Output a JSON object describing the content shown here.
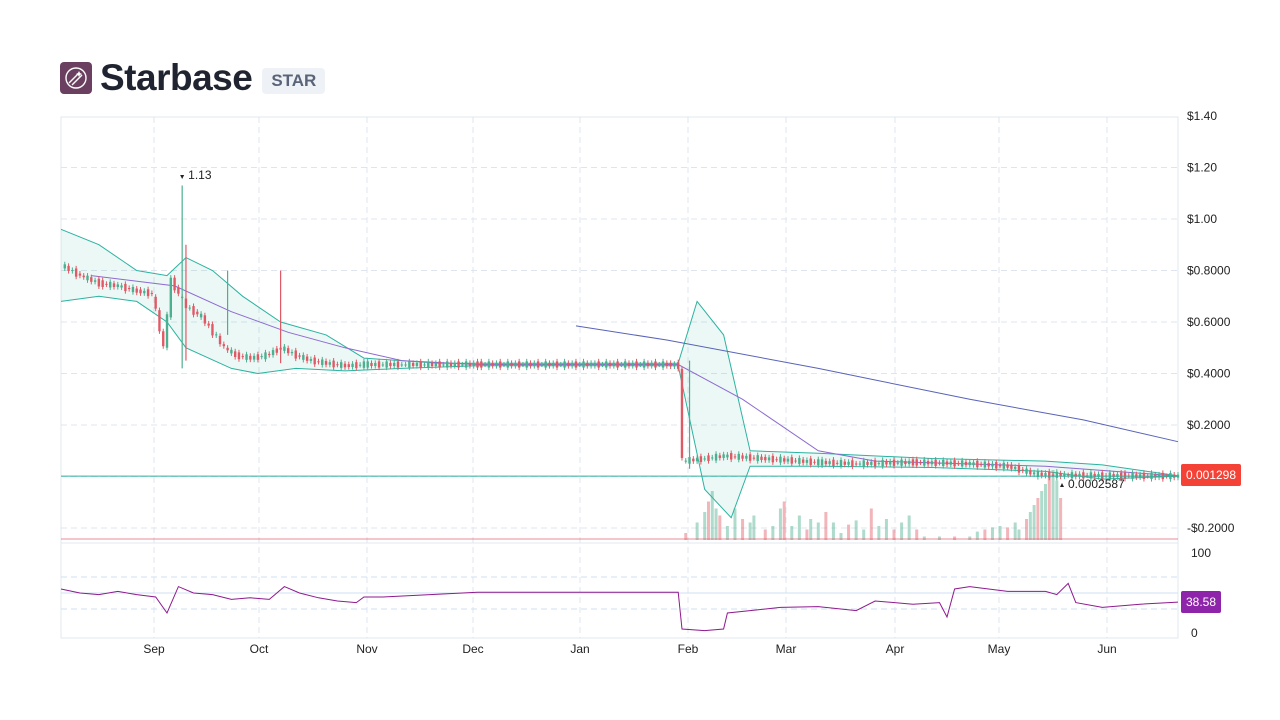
{
  "header": {
    "name": "Starbase",
    "ticker": "STAR",
    "logo_icon": "starbase-logo-icon"
  },
  "colors": {
    "up": "#4caf8f",
    "down": "#e05a66",
    "band": "#2bb3a0",
    "band_fill": "rgba(43,179,160,0.09)",
    "ma_long": "#5863b8",
    "ma_short": "#8c6ad0",
    "rsi": "#8e1a8e",
    "price_pill": "#f44336",
    "rsi_pill": "#8e24aa",
    "grid": "#dfe5ee"
  },
  "chart_data": {
    "type": "candlestick",
    "x_labels": [
      "Sep",
      "Oct",
      "Nov",
      "Dec",
      "Jan",
      "Feb",
      "Mar",
      "Apr",
      "May",
      "Jun"
    ],
    "y_ticks": [
      "$1.40",
      "$1.20",
      "$1.00",
      "$0.8000",
      "$0.6000",
      "$0.4000",
      "$0.2000",
      "-$0.2000"
    ],
    "ylim": [
      -0.2,
      1.4
    ],
    "last_price_label": "0.001298",
    "high_annotation": "1.13",
    "low_annotation": "0.0002587",
    "rsi": {
      "ticks": [
        "100",
        "0"
      ],
      "ylim": [
        0,
        100
      ],
      "last_label": "38.58",
      "bands": [
        30,
        50,
        70
      ]
    },
    "series_close": [
      {
        "x": 0,
        "y": 0.82
      },
      {
        "x": 5,
        "y": 0.78
      },
      {
        "x": 10,
        "y": 0.75
      },
      {
        "x": 15,
        "y": 0.74
      },
      {
        "x": 20,
        "y": 0.72
      },
      {
        "x": 24,
        "y": 0.71
      },
      {
        "x": 27,
        "y": 0.5
      },
      {
        "x": 29,
        "y": 0.76
      },
      {
        "x": 33,
        "y": 0.66
      },
      {
        "x": 37,
        "y": 0.62
      },
      {
        "x": 40,
        "y": 0.56
      },
      {
        "x": 43,
        "y": 0.5
      },
      {
        "x": 46,
        "y": 0.47
      },
      {
        "x": 50,
        "y": 0.46
      },
      {
        "x": 54,
        "y": 0.47
      },
      {
        "x": 58,
        "y": 0.5
      },
      {
        "x": 62,
        "y": 0.47
      },
      {
        "x": 66,
        "y": 0.45
      },
      {
        "x": 70,
        "y": 0.44
      },
      {
        "x": 75,
        "y": 0.43
      },
      {
        "x": 80,
        "y": 0.435
      },
      {
        "x": 90,
        "y": 0.435
      },
      {
        "x": 110,
        "y": 0.435
      },
      {
        "x": 140,
        "y": 0.435
      },
      {
        "x": 160,
        "y": 0.435
      },
      {
        "x": 163,
        "y": 0.43
      },
      {
        "x": 164,
        "y": 0.06
      },
      {
        "x": 170,
        "y": 0.07
      },
      {
        "x": 175,
        "y": 0.08
      },
      {
        "x": 185,
        "y": 0.07
      },
      {
        "x": 200,
        "y": 0.055
      },
      {
        "x": 210,
        "y": 0.05
      },
      {
        "x": 225,
        "y": 0.055
      },
      {
        "x": 240,
        "y": 0.05
      },
      {
        "x": 250,
        "y": 0.04
      },
      {
        "x": 257,
        "y": 0.01
      },
      {
        "x": 265,
        "y": 0.005
      },
      {
        "x": 280,
        "y": 0.003
      },
      {
        "x": 295,
        "y": 0.001298
      }
    ],
    "spikes": [
      {
        "x": 32,
        "high": 1.13,
        "low": 0.42
      },
      {
        "x": 33,
        "high": 0.9,
        "low": 0.45
      },
      {
        "x": 44,
        "high": 0.8,
        "low": 0.55
      },
      {
        "x": 58,
        "high": 0.8,
        "low": 0.44
      },
      {
        "x": 166,
        "high": 0.45,
        "low": 0.03
      }
    ],
    "ma_long": [
      {
        "x": 136,
        "y": 0.585
      },
      {
        "x": 160,
        "y": 0.53
      },
      {
        "x": 200,
        "y": 0.42
      },
      {
        "x": 240,
        "y": 0.3
      },
      {
        "x": 270,
        "y": 0.22
      },
      {
        "x": 295,
        "y": 0.135
      }
    ],
    "ma_short": [
      {
        "x": 8,
        "y": 0.78
      },
      {
        "x": 30,
        "y": 0.74
      },
      {
        "x": 45,
        "y": 0.64
      },
      {
        "x": 60,
        "y": 0.56
      },
      {
        "x": 75,
        "y": 0.5
      },
      {
        "x": 90,
        "y": 0.45
      },
      {
        "x": 110,
        "y": 0.435
      },
      {
        "x": 163,
        "y": 0.435
      },
      {
        "x": 180,
        "y": 0.3
      },
      {
        "x": 200,
        "y": 0.1
      },
      {
        "x": 215,
        "y": 0.06
      },
      {
        "x": 260,
        "y": 0.04
      },
      {
        "x": 295,
        "y": 0.002
      }
    ],
    "band_upper": [
      {
        "x": 0,
        "y": 0.96
      },
      {
        "x": 10,
        "y": 0.9
      },
      {
        "x": 20,
        "y": 0.8
      },
      {
        "x": 28,
        "y": 0.78
      },
      {
        "x": 33,
        "y": 0.85
      },
      {
        "x": 40,
        "y": 0.8
      },
      {
        "x": 48,
        "y": 0.7
      },
      {
        "x": 58,
        "y": 0.6
      },
      {
        "x": 70,
        "y": 0.55
      },
      {
        "x": 80,
        "y": 0.46
      },
      {
        "x": 100,
        "y": 0.44
      },
      {
        "x": 163,
        "y": 0.44
      },
      {
        "x": 168,
        "y": 0.68
      },
      {
        "x": 175,
        "y": 0.55
      },
      {
        "x": 182,
        "y": 0.1
      },
      {
        "x": 200,
        "y": 0.09
      },
      {
        "x": 230,
        "y": 0.07
      },
      {
        "x": 260,
        "y": 0.06
      },
      {
        "x": 275,
        "y": 0.045
      },
      {
        "x": 295,
        "y": 0.003
      }
    ],
    "band_lower": [
      {
        "x": 0,
        "y": 0.68
      },
      {
        "x": 10,
        "y": 0.7
      },
      {
        "x": 20,
        "y": 0.68
      },
      {
        "x": 28,
        "y": 0.6
      },
      {
        "x": 33,
        "y": 0.5
      },
      {
        "x": 45,
        "y": 0.42
      },
      {
        "x": 52,
        "y": 0.4
      },
      {
        "x": 62,
        "y": 0.42
      },
      {
        "x": 75,
        "y": 0.41
      },
      {
        "x": 90,
        "y": 0.42
      },
      {
        "x": 110,
        "y": 0.43
      },
      {
        "x": 163,
        "y": 0.43
      },
      {
        "x": 170,
        "y": -0.05
      },
      {
        "x": 177,
        "y": -0.16
      },
      {
        "x": 182,
        "y": 0.04
      },
      {
        "x": 200,
        "y": 0.04
      },
      {
        "x": 230,
        "y": 0.035
      },
      {
        "x": 260,
        "y": 0.02
      },
      {
        "x": 275,
        "y": -0.01
      },
      {
        "x": 295,
        "y": 0.001
      }
    ],
    "volume": [
      {
        "x": 165,
        "v": 0.1
      },
      {
        "x": 168,
        "v": 0.25
      },
      {
        "x": 170,
        "v": 0.4
      },
      {
        "x": 171,
        "v": 0.55
      },
      {
        "x": 172,
        "v": 0.7
      },
      {
        "x": 173,
        "v": 0.45
      },
      {
        "x": 174,
        "v": 0.35
      },
      {
        "x": 176,
        "v": 0.2
      },
      {
        "x": 178,
        "v": 0.45
      },
      {
        "x": 180,
        "v": 0.3
      },
      {
        "x": 182,
        "v": 0.25
      },
      {
        "x": 183,
        "v": 0.35
      },
      {
        "x": 186,
        "v": 0.15
      },
      {
        "x": 188,
        "v": 0.2
      },
      {
        "x": 190,
        "v": 0.45
      },
      {
        "x": 191,
        "v": 0.55
      },
      {
        "x": 193,
        "v": 0.2
      },
      {
        "x": 195,
        "v": 0.35
      },
      {
        "x": 197,
        "v": 0.15
      },
      {
        "x": 198,
        "v": 0.3
      },
      {
        "x": 200,
        "v": 0.25
      },
      {
        "x": 202,
        "v": 0.4
      },
      {
        "x": 204,
        "v": 0.25
      },
      {
        "x": 206,
        "v": 0.1
      },
      {
        "x": 208,
        "v": 0.22
      },
      {
        "x": 210,
        "v": 0.28
      },
      {
        "x": 212,
        "v": 0.15
      },
      {
        "x": 214,
        "v": 0.45
      },
      {
        "x": 216,
        "v": 0.2
      },
      {
        "x": 218,
        "v": 0.3
      },
      {
        "x": 220,
        "v": 0.15
      },
      {
        "x": 222,
        "v": 0.25
      },
      {
        "x": 224,
        "v": 0.35
      },
      {
        "x": 226,
        "v": 0.15
      },
      {
        "x": 228,
        "v": 0.05
      },
      {
        "x": 232,
        "v": 0.05
      },
      {
        "x": 236,
        "v": 0.05
      },
      {
        "x": 240,
        "v": 0.05
      },
      {
        "x": 242,
        "v": 0.12
      },
      {
        "x": 244,
        "v": 0.15
      },
      {
        "x": 246,
        "v": 0.18
      },
      {
        "x": 248,
        "v": 0.2
      },
      {
        "x": 250,
        "v": 0.18
      },
      {
        "x": 252,
        "v": 0.25
      },
      {
        "x": 253,
        "v": 0.15
      },
      {
        "x": 255,
        "v": 0.3
      },
      {
        "x": 256,
        "v": 0.4
      },
      {
        "x": 257,
        "v": 0.5
      },
      {
        "x": 258,
        "v": 0.6
      },
      {
        "x": 259,
        "v": 0.7
      },
      {
        "x": 260,
        "v": 0.8
      },
      {
        "x": 261,
        "v": 0.9
      },
      {
        "x": 262,
        "v": 1.0
      },
      {
        "x": 263,
        "v": 0.85
      },
      {
        "x": 264,
        "v": 0.6
      }
    ],
    "rsi_series": [
      {
        "x": 0,
        "y": 55
      },
      {
        "x": 5,
        "y": 50
      },
      {
        "x": 10,
        "y": 48
      },
      {
        "x": 15,
        "y": 52
      },
      {
        "x": 20,
        "y": 48
      },
      {
        "x": 25,
        "y": 45
      },
      {
        "x": 28,
        "y": 25
      },
      {
        "x": 31,
        "y": 58
      },
      {
        "x": 35,
        "y": 50
      },
      {
        "x": 40,
        "y": 48
      },
      {
        "x": 45,
        "y": 42
      },
      {
        "x": 50,
        "y": 44
      },
      {
        "x": 55,
        "y": 42
      },
      {
        "x": 59,
        "y": 58
      },
      {
        "x": 63,
        "y": 50
      },
      {
        "x": 68,
        "y": 44
      },
      {
        "x": 73,
        "y": 40
      },
      {
        "x": 78,
        "y": 38
      },
      {
        "x": 80,
        "y": 45
      },
      {
        "x": 85,
        "y": 45
      },
      {
        "x": 110,
        "y": 51
      },
      {
        "x": 163,
        "y": 51
      },
      {
        "x": 164,
        "y": 5
      },
      {
        "x": 170,
        "y": 3
      },
      {
        "x": 175,
        "y": 5
      },
      {
        "x": 176,
        "y": 25
      },
      {
        "x": 182,
        "y": 28
      },
      {
        "x": 190,
        "y": 32
      },
      {
        "x": 200,
        "y": 33
      },
      {
        "x": 210,
        "y": 28
      },
      {
        "x": 215,
        "y": 40
      },
      {
        "x": 225,
        "y": 36
      },
      {
        "x": 232,
        "y": 38
      },
      {
        "x": 234,
        "y": 20
      },
      {
        "x": 236,
        "y": 55
      },
      {
        "x": 240,
        "y": 58
      },
      {
        "x": 250,
        "y": 52
      },
      {
        "x": 260,
        "y": 52
      },
      {
        "x": 263,
        "y": 48
      },
      {
        "x": 266,
        "y": 62
      },
      {
        "x": 268,
        "y": 38
      },
      {
        "x": 275,
        "y": 32
      },
      {
        "x": 285,
        "y": 36
      },
      {
        "x": 295,
        "y": 38.58
      }
    ]
  }
}
